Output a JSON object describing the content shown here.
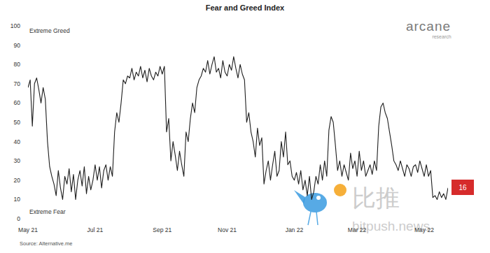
{
  "chart_data": {
    "type": "line",
    "title": "Fear and Greed Index",
    "annotations": [
      "Extreme Greed",
      "Extreme Fear",
      "Source: Alternative.me",
      "16",
      "arcane",
      "research",
      "比推",
      "bitpush.news"
    ],
    "color": "#1e1e1e",
    "grid": false,
    "ylim": [
      0,
      100
    ],
    "yticks": [
      0,
      10,
      20,
      30,
      40,
      50,
      60,
      70,
      80,
      90,
      100
    ],
    "categories": [
      "May 21",
      null,
      null,
      null,
      null,
      null,
      null,
      null,
      null,
      null,
      null,
      null,
      null,
      null,
      null,
      null,
      null,
      null,
      null,
      null,
      null,
      null,
      null,
      null,
      null,
      null,
      null,
      null,
      null,
      null,
      null,
      "Jul 21",
      null,
      null,
      null,
      null,
      null,
      null,
      null,
      null,
      null,
      null,
      null,
      null,
      null,
      null,
      null,
      null,
      null,
      null,
      null,
      null,
      null,
      null,
      null,
      null,
      null,
      null,
      null,
      null,
      null,
      null,
      "Sep 21",
      null,
      null,
      null,
      null,
      null,
      null,
      null,
      null,
      null,
      null,
      null,
      null,
      null,
      null,
      null,
      null,
      null,
      null,
      null,
      null,
      null,
      null,
      null,
      null,
      null,
      null,
      null,
      null,
      null,
      "Nov 21",
      null,
      null,
      null,
      null,
      null,
      null,
      null,
      null,
      null,
      null,
      null,
      null,
      null,
      null,
      null,
      null,
      null,
      null,
      null,
      null,
      null,
      null,
      null,
      null,
      null,
      null,
      null,
      null,
      null,
      null,
      "Jan 22",
      null,
      null,
      null,
      null,
      null,
      null,
      null,
      null,
      null,
      null,
      null,
      null,
      null,
      null,
      null,
      null,
      null,
      null,
      null,
      null,
      null,
      null,
      null,
      null,
      null,
      null,
      null,
      null,
      "Mar 22",
      null,
      null,
      null,
      null,
      null,
      null,
      null,
      null,
      null,
      null,
      null,
      null,
      null,
      null,
      null,
      null,
      null,
      null,
      null,
      null,
      null,
      null,
      null,
      null,
      null,
      null,
      null,
      null,
      null,
      null,
      "May 22",
      null,
      null,
      null,
      null,
      null,
      null,
      null,
      null,
      null,
      null,
      null
    ],
    "values": [
      68,
      72,
      48,
      70,
      73,
      67,
      60,
      68,
      62,
      40,
      27,
      22,
      18,
      12,
      25,
      16,
      10,
      22,
      18,
      26,
      14,
      23,
      10,
      20,
      25,
      17,
      27,
      13,
      22,
      15,
      20,
      28,
      20,
      27,
      16,
      25,
      28,
      20,
      27,
      22,
      45,
      55,
      50,
      60,
      72,
      70,
      74,
      73,
      78,
      72,
      76,
      74,
      79,
      73,
      77,
      71,
      78,
      74,
      72,
      76,
      74,
      79,
      75,
      79,
      45,
      52,
      30,
      40,
      33,
      25,
      35,
      28,
      22,
      45,
      40,
      52,
      60,
      55,
      68,
      72,
      74,
      78,
      76,
      82,
      75,
      80,
      84,
      76,
      78,
      73,
      82,
      76,
      74,
      80,
      77,
      84,
      78,
      73,
      80,
      75,
      72,
      50,
      55,
      45,
      40,
      32,
      47,
      38,
      42,
      18,
      25,
      30,
      20,
      28,
      35,
      22,
      25,
      40,
      32,
      45,
      28,
      30,
      22,
      20,
      24,
      18,
      25,
      15,
      20,
      12,
      22,
      10,
      14,
      22,
      18,
      28,
      20,
      30,
      22,
      46,
      53,
      50,
      38,
      25,
      30,
      22,
      28,
      24,
      20,
      34,
      26,
      30,
      22,
      35,
      25,
      30,
      22,
      25,
      28,
      23,
      30,
      25,
      48,
      58,
      60,
      55,
      52,
      45,
      38,
      30,
      28,
      25,
      30,
      26,
      22,
      28,
      26,
      22,
      27,
      28,
      24,
      30,
      26,
      22,
      28,
      22,
      25,
      11,
      12,
      10,
      14,
      11,
      13,
      10,
      16
    ]
  }
}
